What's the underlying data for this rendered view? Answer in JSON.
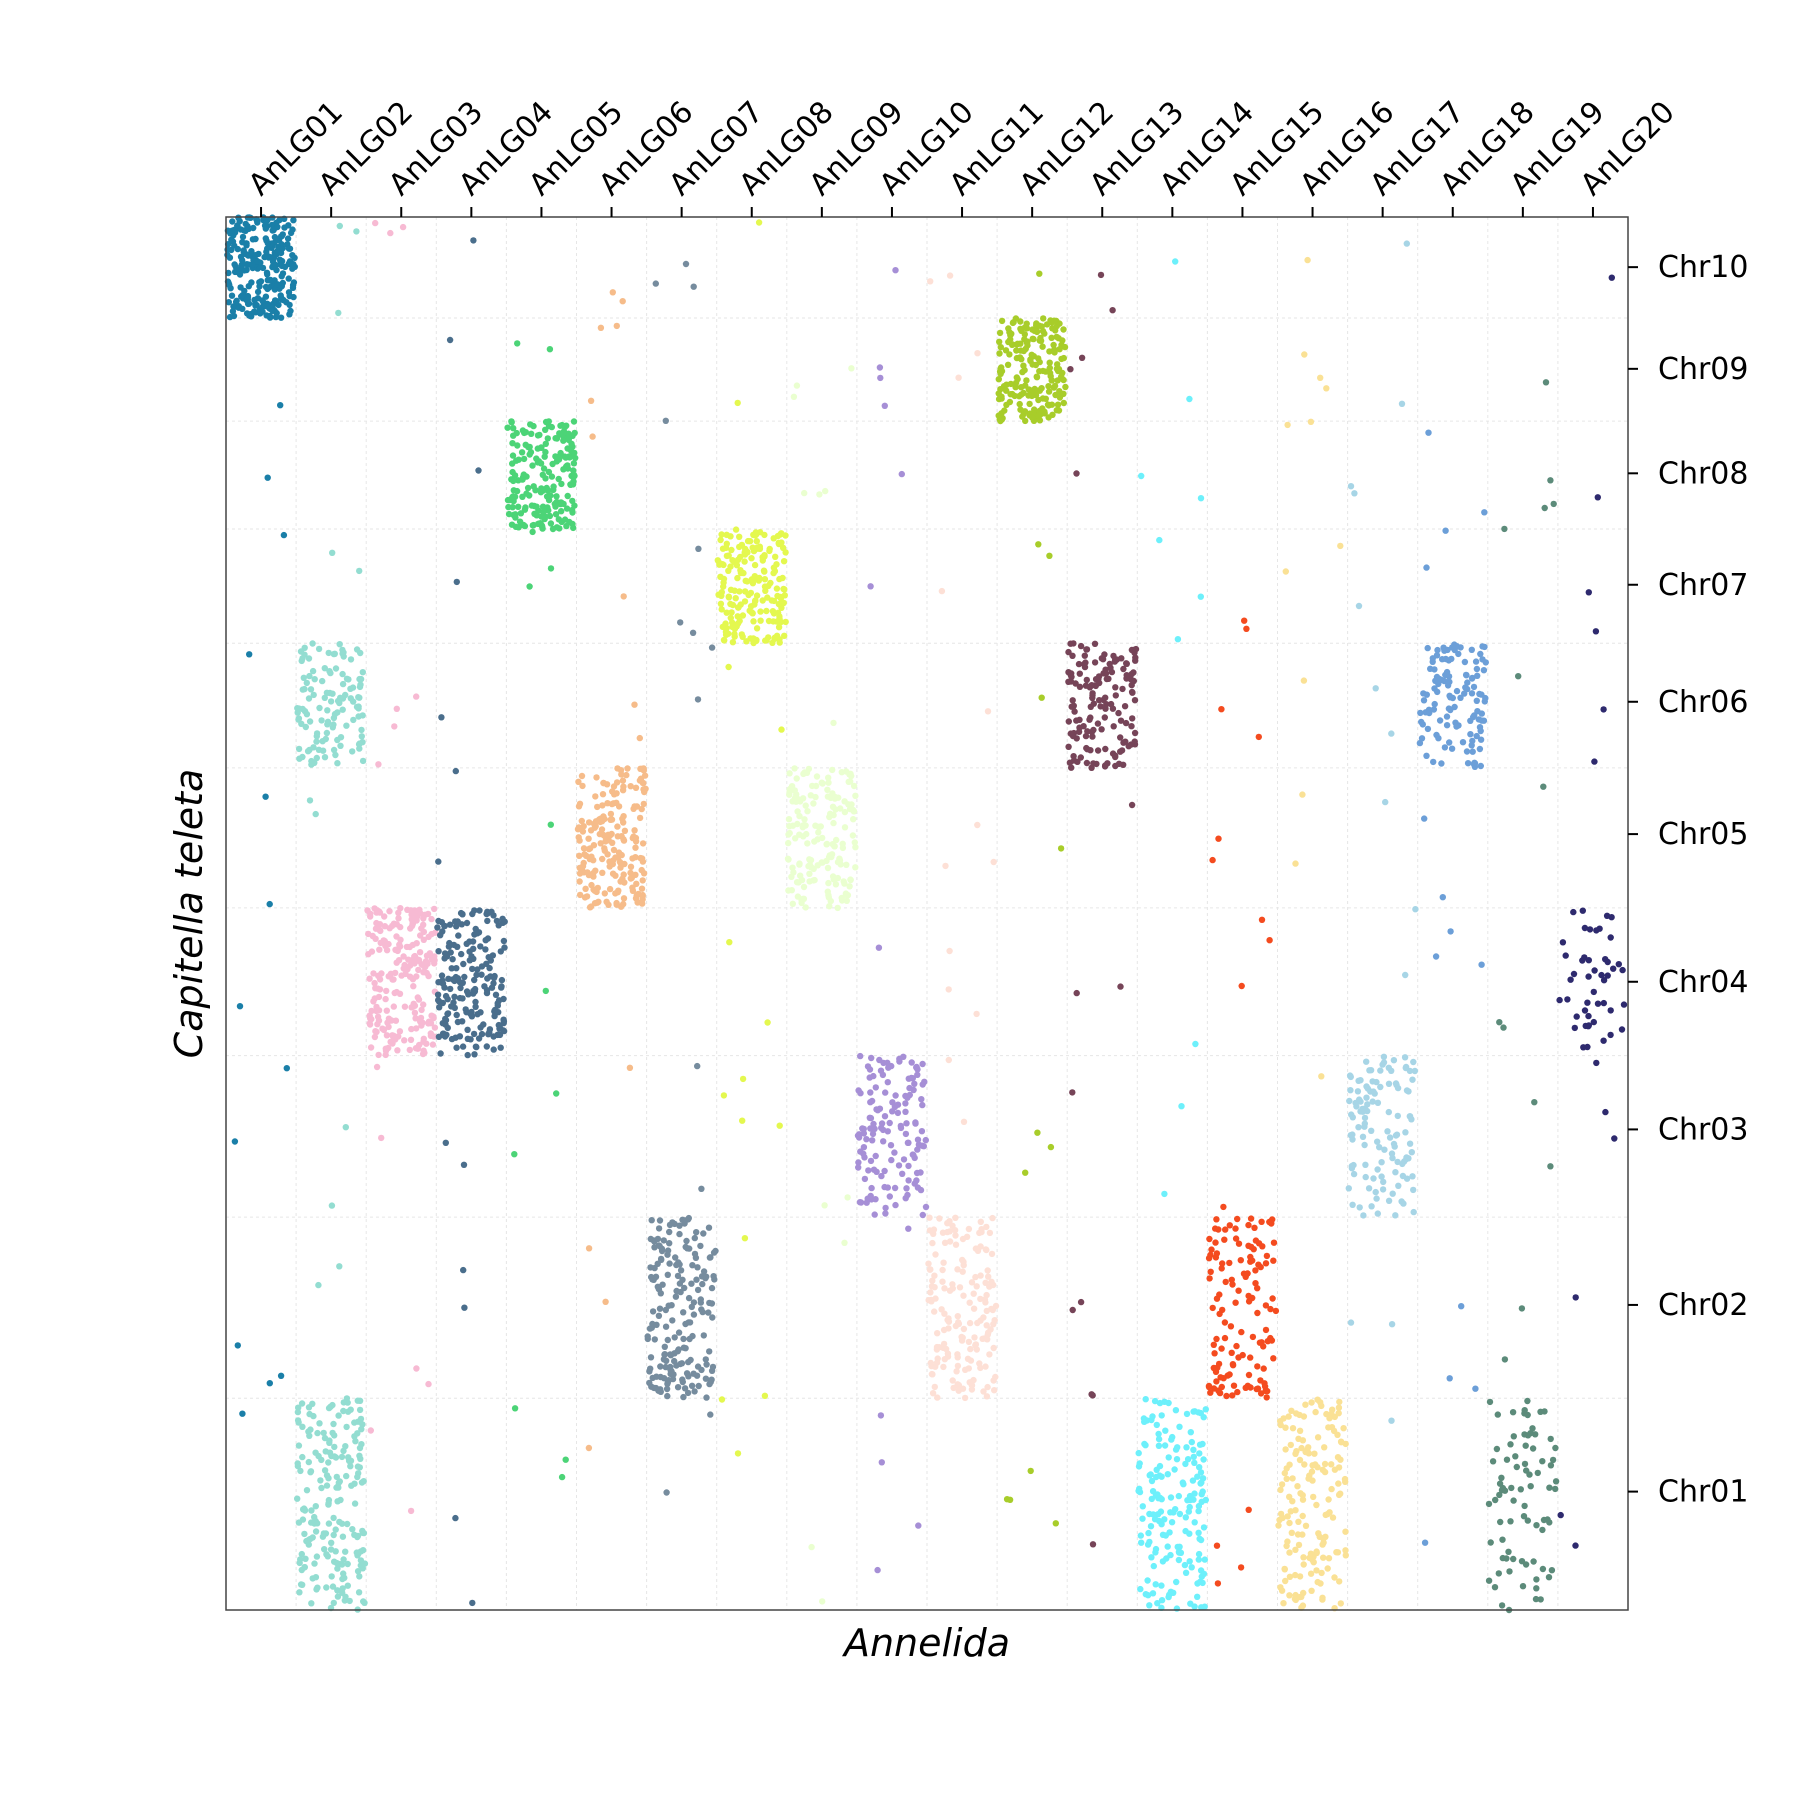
{
  "chart_data": {
    "type": "scatter",
    "title": "",
    "xlabel": "Annelida",
    "ylabel": "Capitella teleta",
    "x_categories": [
      "AnLG01",
      "AnLG02",
      "AnLG03",
      "AnLG04",
      "AnLG05",
      "AnLG06",
      "AnLG07",
      "AnLG08",
      "AnLG09",
      "AnLG10",
      "AnLG11",
      "AnLG12",
      "AnLG13",
      "AnLG14",
      "AnLG15",
      "AnLG16",
      "AnLG17",
      "AnLG18",
      "AnLG19",
      "AnLG20"
    ],
    "y_categories": [
      "Chr01",
      "Chr02",
      "Chr03",
      "Chr04",
      "Chr05",
      "Chr06",
      "Chr07",
      "Chr08",
      "Chr09",
      "Chr10"
    ],
    "y_tick_positions": [
      0.085,
      0.219,
      0.345,
      0.451,
      0.557,
      0.652,
      0.736,
      0.816,
      0.891,
      0.964
    ],
    "grid": true,
    "legend": "none",
    "series": [
      {
        "lg": "AnLG01",
        "color": "#1a7fa8",
        "blocks": [
          {
            "chr": "Chr10",
            "n": 260
          }
        ]
      },
      {
        "lg": "AnLG02",
        "color": "#93ddd1",
        "blocks": [
          {
            "chr": "Chr01",
            "n": 200
          },
          {
            "chr": "Chr06",
            "n": 120
          }
        ]
      },
      {
        "lg": "AnLG03",
        "color": "#f7bad3",
        "blocks": [
          {
            "chr": "Chr04",
            "n": 220
          }
        ]
      },
      {
        "lg": "AnLG04",
        "color": "#4a6e8c",
        "blocks": [
          {
            "chr": "Chr04",
            "n": 190
          }
        ]
      },
      {
        "lg": "AnLG05",
        "color": "#4cd477",
        "blocks": [
          {
            "chr": "Chr08",
            "n": 200
          }
        ]
      },
      {
        "lg": "AnLG06",
        "color": "#f6bc8a",
        "blocks": [
          {
            "chr": "Chr05",
            "n": 200
          }
        ]
      },
      {
        "lg": "AnLG07",
        "color": "#768c9e",
        "blocks": [
          {
            "chr": "Chr02",
            "n": 190
          }
        ]
      },
      {
        "lg": "AnLG08",
        "color": "#e4f84f",
        "blocks": [
          {
            "chr": "Chr07",
            "n": 200
          }
        ]
      },
      {
        "lg": "AnLG09",
        "color": "#eaffd0",
        "blocks": [
          {
            "chr": "Chr05",
            "n": 170
          }
        ]
      },
      {
        "lg": "AnLG10",
        "color": "#a68fd6",
        "blocks": [
          {
            "chr": "Chr03",
            "n": 140
          }
        ]
      },
      {
        "lg": "AnLG11",
        "color": "#fde0d6",
        "blocks": [
          {
            "chr": "Chr02",
            "n": 170
          }
        ]
      },
      {
        "lg": "AnLG12",
        "color": "#a8cd2a",
        "blocks": [
          {
            "chr": "Chr09",
            "n": 200
          }
        ]
      },
      {
        "lg": "AnLG13",
        "color": "#764458",
        "blocks": [
          {
            "chr": "Chr06",
            "n": 150
          }
        ]
      },
      {
        "lg": "AnLG14",
        "color": "#6df0fb",
        "blocks": [
          {
            "chr": "Chr01",
            "n": 170
          }
        ]
      },
      {
        "lg": "AnLG15",
        "color": "#f44b1f",
        "blocks": [
          {
            "chr": "Chr02",
            "n": 130
          }
        ]
      },
      {
        "lg": "AnLG16",
        "color": "#fae195",
        "blocks": [
          {
            "chr": "Chr01",
            "n": 160
          }
        ]
      },
      {
        "lg": "AnLG17",
        "color": "#a7d5e6",
        "blocks": [
          {
            "chr": "Chr03",
            "n": 120
          }
        ]
      },
      {
        "lg": "AnLG18",
        "color": "#6c9fd8",
        "blocks": [
          {
            "chr": "Chr06",
            "n": 120
          }
        ]
      },
      {
        "lg": "AnLG19",
        "color": "#5c8b7a",
        "blocks": [
          {
            "chr": "Chr01",
            "n": 80
          }
        ]
      },
      {
        "lg": "AnLG20",
        "color": "#2e2a6e",
        "blocks": [
          {
            "chr": "Chr04",
            "n": 45
          }
        ]
      }
    ]
  }
}
